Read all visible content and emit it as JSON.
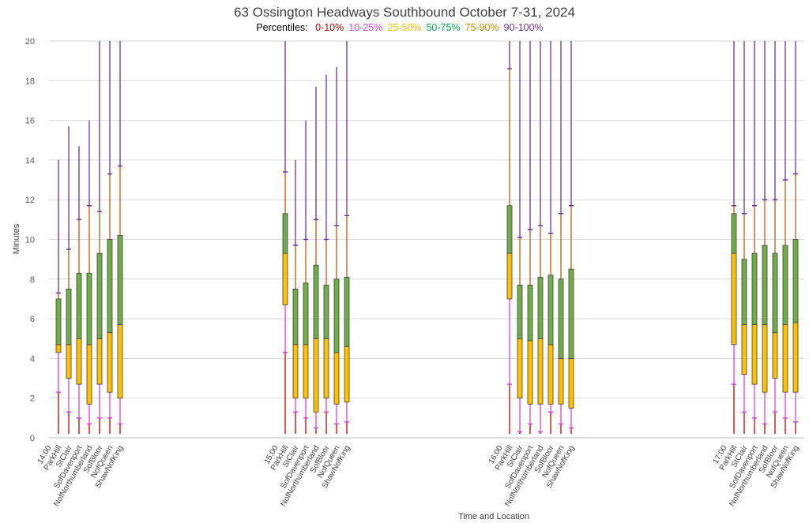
{
  "chart_data": {
    "type": "box",
    "title": "63 Ossington Headways Southbound October 7-31, 2024",
    "legend": {
      "label": "Percentiles:",
      "entries": [
        {
          "name": "0-10%",
          "color": "#c00000"
        },
        {
          "name": "10-25%",
          "color": "#e040e0"
        },
        {
          "name": "25-50%",
          "color": "#ffc000"
        },
        {
          "name": "50-75%",
          "color": "#00b050"
        },
        {
          "name": "75-90%",
          "color": "#c09000"
        },
        {
          "name": "90-100%",
          "color": "#7030a0"
        }
      ]
    },
    "xlabel": "Time and Location",
    "ylabel": "Minutes",
    "ylim": [
      0,
      20
    ],
    "yticks": [
      0,
      2,
      4,
      6,
      8,
      10,
      12,
      14,
      16,
      18,
      20
    ],
    "grid": true,
    "colors": {
      "whisker_low": "#c00000",
      "p10_25": "#e040e0",
      "box_low": "#ffc000",
      "box_high": "#70ad47",
      "p75_90": "#c55a11",
      "p90_100": "#7030a0",
      "grid": "#d9d9d9",
      "box_outline": "#404040"
    },
    "groups": [
      {
        "time": "14:00",
        "locations": [
          "ParkHill",
          "StClair",
          "SofDavenport",
          "NofNorthumberland",
          "SofBloor",
          "NofQueen",
          "ShawNofKing"
        ],
        "stats": [
          {
            "min": 0.2,
            "p10": 2.3,
            "p25": 4.3,
            "median": 4.7,
            "p75": 7.0,
            "p90": 7.3,
            "max": 14.0
          },
          {
            "min": 0.2,
            "p10": 1.3,
            "p25": 3.0,
            "median": 4.7,
            "p75": 7.5,
            "p90": 9.5,
            "max": 15.7
          },
          {
            "min": 0.2,
            "p10": 1.0,
            "p25": 2.7,
            "median": 5.0,
            "p75": 8.3,
            "p90": 11.0,
            "max": 14.7
          },
          {
            "min": 0.2,
            "p10": 0.7,
            "p25": 1.7,
            "median": 4.7,
            "p75": 8.3,
            "p90": 11.7,
            "max": 16.0
          },
          {
            "min": 0.2,
            "p10": 1.0,
            "p25": 2.7,
            "median": 5.0,
            "p75": 9.3,
            "p90": 11.4,
            "max": 20.0
          },
          {
            "min": 0.2,
            "p10": 1.0,
            "p25": 2.3,
            "median": 5.3,
            "p75": 10.0,
            "p90": 13.3,
            "max": 20.0
          },
          {
            "min": 0.2,
            "p10": 0.7,
            "p25": 2.0,
            "median": 5.7,
            "p75": 10.2,
            "p90": 13.7,
            "max": 20.0
          }
        ]
      },
      {
        "time": "15:00",
        "locations": [
          "ParkHill",
          "StClair",
          "SofDavenport",
          "NofNorthumberland",
          "SofBloor",
          "NofQueen",
          "ShawNofKing"
        ],
        "stats": [
          {
            "min": 0.2,
            "p10": 4.3,
            "p25": 6.7,
            "median": 9.3,
            "p75": 11.3,
            "p90": 13.4,
            "max": 20.0
          },
          {
            "min": 0.2,
            "p10": 1.3,
            "p25": 2.0,
            "median": 4.7,
            "p75": 7.5,
            "p90": 9.7,
            "max": 14.0
          },
          {
            "min": 0.2,
            "p10": 1.0,
            "p25": 2.0,
            "median": 4.7,
            "p75": 7.8,
            "p90": 10.0,
            "max": 16.0
          },
          {
            "min": 0.2,
            "p10": 0.5,
            "p25": 1.3,
            "median": 5.0,
            "p75": 8.7,
            "p90": 11.0,
            "max": 17.7
          },
          {
            "min": 0.2,
            "p10": 1.3,
            "p25": 2.0,
            "median": 5.0,
            "p75": 7.7,
            "p90": 10.0,
            "max": 18.3
          },
          {
            "min": 0.2,
            "p10": 0.7,
            "p25": 1.7,
            "median": 4.3,
            "p75": 8.0,
            "p90": 10.7,
            "max": 18.7
          },
          {
            "min": 0.2,
            "p10": 0.8,
            "p25": 1.8,
            "median": 4.6,
            "p75": 8.1,
            "p90": 11.2,
            "max": 20.0
          }
        ]
      },
      {
        "time": "16:00",
        "locations": [
          "ParkHill",
          "StClair",
          "SofDavenport",
          "NofNorthumberland",
          "SofBloor",
          "NofQueen",
          "ShawNofKing"
        ],
        "stats": [
          {
            "min": 0.2,
            "p10": 2.7,
            "p25": 7.0,
            "median": 9.3,
            "p75": 11.7,
            "p90": 18.6,
            "max": 20.0
          },
          {
            "min": 0.2,
            "p10": 0.3,
            "p25": 2.0,
            "median": 5.0,
            "p75": 7.7,
            "p90": 10.1,
            "max": 20.0
          },
          {
            "min": 0.2,
            "p10": 0.7,
            "p25": 1.7,
            "median": 4.9,
            "p75": 7.7,
            "p90": 10.5,
            "max": 20.0
          },
          {
            "min": 0.2,
            "p10": 0.3,
            "p25": 1.7,
            "median": 5.0,
            "p75": 8.1,
            "p90": 10.7,
            "max": 20.0
          },
          {
            "min": 0.2,
            "p10": 1.3,
            "p25": 1.7,
            "median": 4.7,
            "p75": 8.2,
            "p90": 10.3,
            "max": 20.0
          },
          {
            "min": 0.2,
            "p10": 0.7,
            "p25": 1.7,
            "median": 4.0,
            "p75": 8.0,
            "p90": 11.3,
            "max": 20.0
          },
          {
            "min": 0.2,
            "p10": 0.5,
            "p25": 1.5,
            "median": 4.0,
            "p75": 8.5,
            "p90": 11.7,
            "max": 20.0
          }
        ]
      },
      {
        "time": "17:00",
        "locations": [
          "ParkHill",
          "StClair",
          "SofDavenport",
          "NofNorthumberland",
          "SofBloor",
          "NofQueen",
          "ShawNofKing"
        ],
        "stats": [
          {
            "min": 0.2,
            "p10": 2.7,
            "p25": 4.7,
            "median": 9.3,
            "p75": 11.3,
            "p90": 11.7,
            "max": 20.0
          },
          {
            "min": 0.2,
            "p10": 1.3,
            "p25": 3.2,
            "median": 5.7,
            "p75": 9.0,
            "p90": 11.3,
            "max": 20.0
          },
          {
            "min": 0.2,
            "p10": 1.0,
            "p25": 2.7,
            "median": 5.7,
            "p75": 9.3,
            "p90": 11.7,
            "max": 20.0
          },
          {
            "min": 0.2,
            "p10": 0.7,
            "p25": 2.3,
            "median": 5.7,
            "p75": 9.7,
            "p90": 12.0,
            "max": 20.0
          },
          {
            "min": 0.2,
            "p10": 1.3,
            "p25": 3.0,
            "median": 5.3,
            "p75": 9.3,
            "p90": 12.0,
            "max": 20.0
          },
          {
            "min": 0.2,
            "p10": 1.0,
            "p25": 2.3,
            "median": 5.7,
            "p75": 9.7,
            "p90": 13.0,
            "max": 20.0
          },
          {
            "min": 0.2,
            "p10": 0.8,
            "p25": 2.3,
            "median": 5.8,
            "p75": 10.0,
            "p90": 13.3,
            "max": 20.0
          }
        ]
      }
    ]
  }
}
